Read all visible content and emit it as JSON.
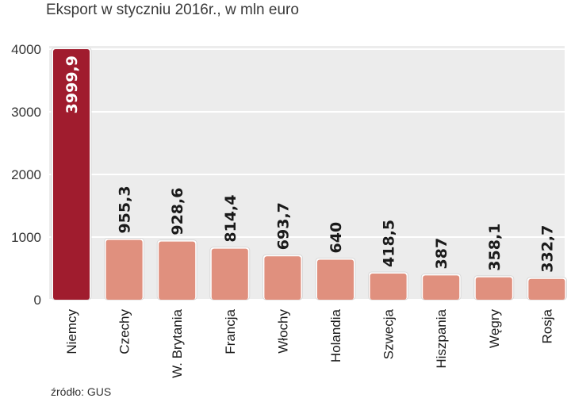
{
  "chart_data": {
    "type": "bar",
    "title": "Eksport w styczniu 2016r., w mln euro",
    "categories": [
      "Niemcy",
      "Czechy",
      "W. Brytania",
      "Francja",
      "Włochy",
      "Holandia",
      "Szwecja",
      "Hiszpania",
      "Węgry",
      "Rosja"
    ],
    "values": [
      3999.9,
      955.3,
      928.6,
      814.4,
      693.7,
      640,
      418.5,
      387,
      358.1,
      332.7
    ],
    "value_labels": [
      "3999,9",
      "955,3",
      "928,6",
      "814,4",
      "693,7",
      "640",
      "418,5",
      "387",
      "358,1",
      "332,7"
    ],
    "yticks": [
      "4000",
      "3000",
      "2000",
      "1000",
      "0"
    ],
    "ylim": [
      0,
      4000
    ],
    "grid": true,
    "colors": {
      "highlight": "#a01c2e",
      "bar": "#e0907e",
      "plot_bg": "#ececec",
      "gridline": "#ffffff"
    }
  },
  "source": "źródło: GUS"
}
